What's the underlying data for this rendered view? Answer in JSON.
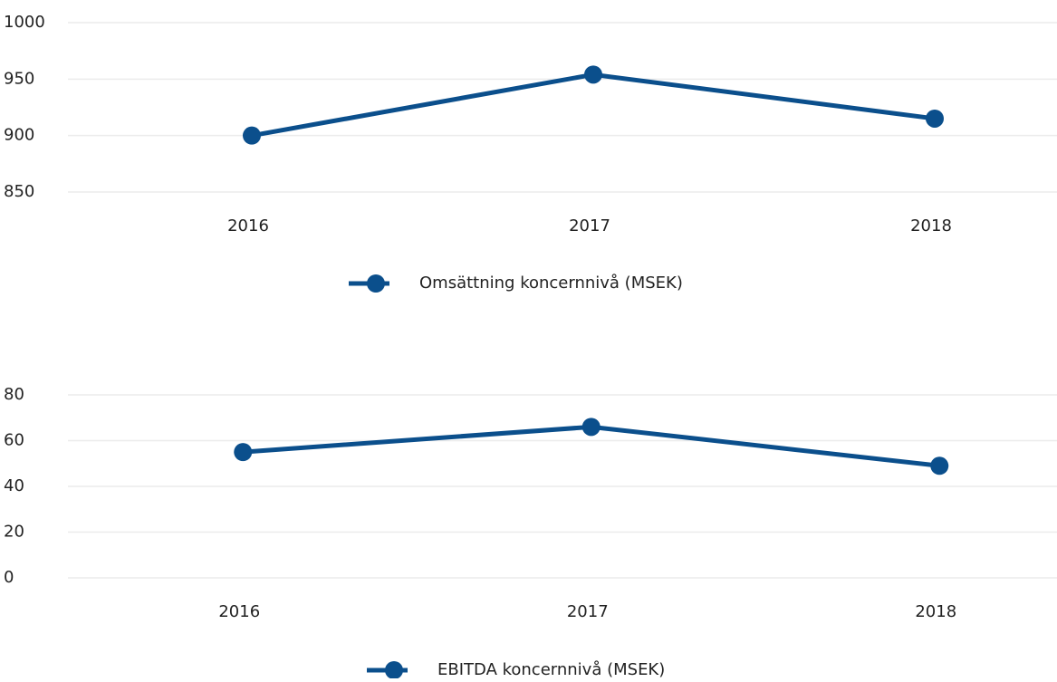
{
  "chart_data": [
    {
      "type": "line",
      "categories": [
        "2016",
        "2017",
        "2018"
      ],
      "series": [
        {
          "name": "Omsättning koncernnivå (MSEK)",
          "color": "#0b4f8c",
          "values": [
            900,
            954,
            915
          ]
        }
      ],
      "ylim": [
        850,
        1000
      ],
      "yticks": [
        850,
        900,
        950,
        1000
      ],
      "grid": true
    },
    {
      "type": "line",
      "categories": [
        "2016",
        "2017",
        "2018"
      ],
      "series": [
        {
          "name": "EBITDA koncernnivå (MSEK)",
          "color": "#0b4f8c",
          "values": [
            55,
            66,
            49
          ]
        }
      ],
      "ylim": [
        0,
        80
      ],
      "yticks": [
        0,
        20,
        40,
        60,
        80
      ],
      "grid": true
    }
  ]
}
